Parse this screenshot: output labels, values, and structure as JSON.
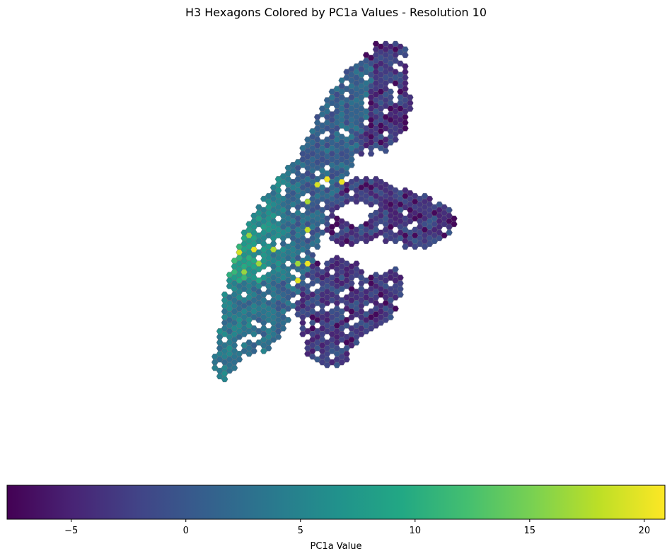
{
  "figure": {
    "title": "H3 Hexagons Colored by PC1a Values - Resolution 10"
  },
  "colorbar": {
    "label": "PC1a Value",
    "min": -7.8,
    "max": 20.9,
    "ticks": [
      {
        "value": -5,
        "label": "−5"
      },
      {
        "value": 0,
        "label": "0"
      },
      {
        "value": 5,
        "label": "5"
      },
      {
        "value": 10,
        "label": "10"
      },
      {
        "value": 15,
        "label": "15"
      },
      {
        "value": 20,
        "label": "20"
      }
    ],
    "colormap": [
      "#440154",
      "#482475",
      "#414487",
      "#355f8d",
      "#2a788e",
      "#21918c",
      "#22a884",
      "#44bf70",
      "#7ad151",
      "#bddf26",
      "#fde725"
    ]
  },
  "map": {
    "background": "#ffffff",
    "hex_edge_color": "#6b6b7a"
  }
}
